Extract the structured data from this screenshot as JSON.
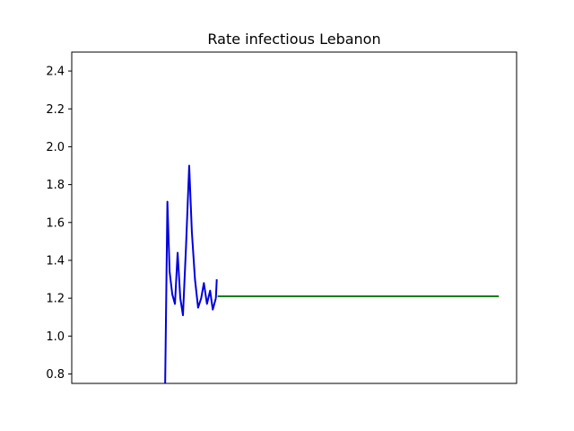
{
  "chart_data": {
    "type": "line",
    "title": "Rate infectious Lebanon",
    "xlabel": "",
    "ylabel": "",
    "ylim": [
      0.75,
      2.5
    ],
    "xlim": [
      0,
      100
    ],
    "x_ticks_visible": false,
    "y_ticks": [
      0.8,
      1.0,
      1.2,
      1.4,
      1.6,
      1.8,
      2.0,
      2.2,
      2.4
    ],
    "y_tick_labels": [
      "0.8",
      "1.0",
      "1.2",
      "1.4",
      "1.6",
      "1.8",
      "2.0",
      "2.2",
      "2.4"
    ],
    "grid": false,
    "legend": "none",
    "series": [
      {
        "color": "#0000dd",
        "x": [
          21.0,
          21.5,
          22.0,
          22.6,
          23.2,
          23.8,
          24.4,
          25.0,
          25.7,
          26.4,
          27.0,
          27.7,
          28.4,
          29.1,
          29.7,
          30.4,
          31.1,
          31.7,
          32.4
        ],
        "y": [
          0.75,
          1.71,
          1.34,
          1.22,
          1.17,
          1.44,
          1.2,
          1.11,
          1.48,
          1.9,
          1.55,
          1.3,
          1.15,
          1.2,
          1.28,
          1.17,
          1.24,
          1.14,
          1.2
        ]
      },
      {
        "color": "#008000",
        "x": [
          32.8,
          96.0
        ],
        "y": [
          1.21,
          1.21
        ]
      },
      {
        "color": "#0000dd",
        "x": [
          32.4,
          32.6
        ],
        "y": [
          1.2,
          1.3
        ]
      }
    ]
  }
}
